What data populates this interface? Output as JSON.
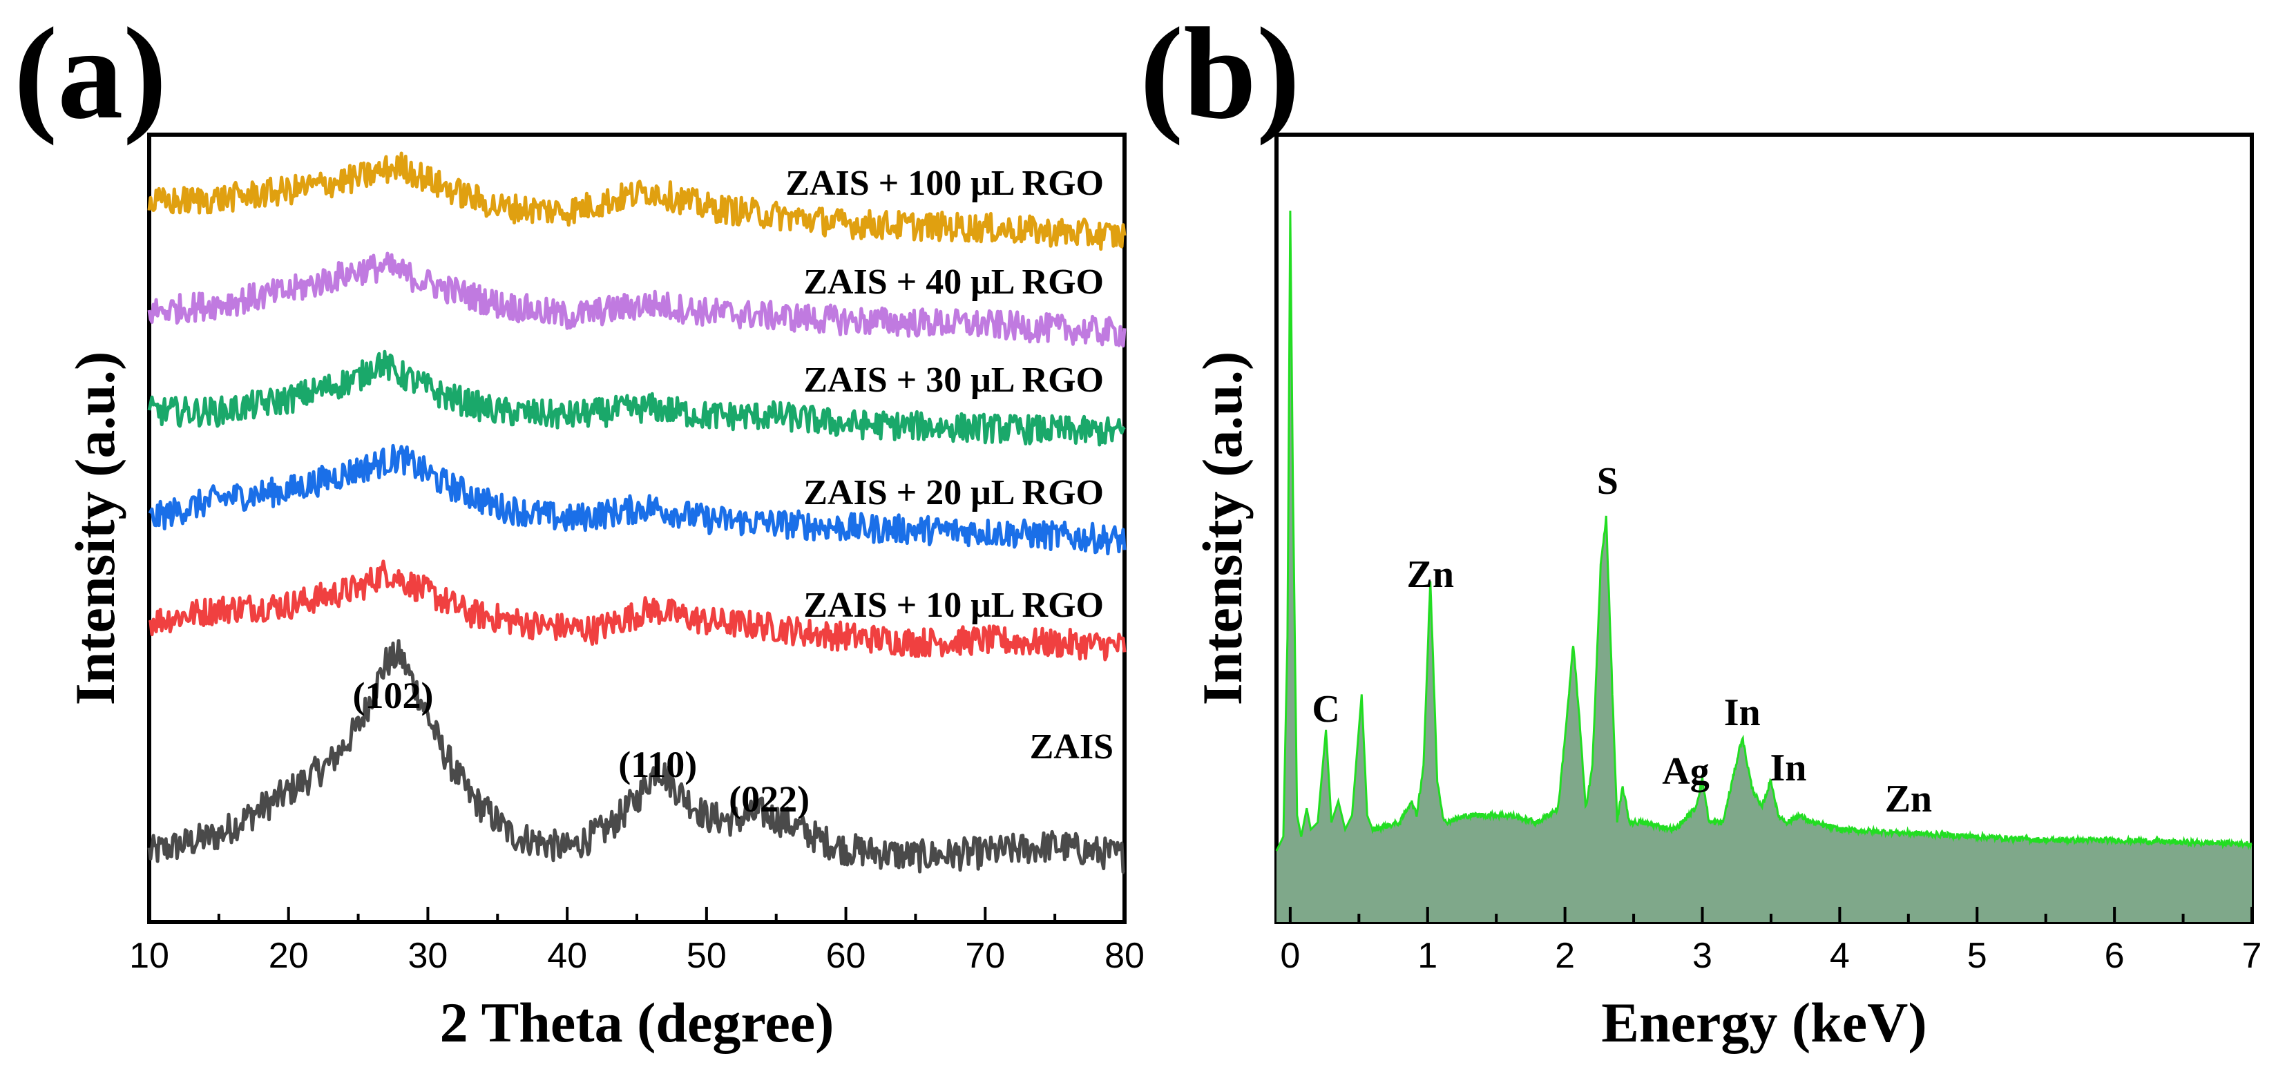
{
  "chart_data": [
    {
      "panel": "(a)",
      "type": "line",
      "title": "",
      "xlabel": "2 Theta (degree)",
      "ylabel": "Intensity (a.u.)",
      "xlim": [
        10,
        80
      ],
      "xticks": [
        "10",
        "20",
        "30",
        "40",
        "50",
        "60",
        "70",
        "80"
      ],
      "y_ticks_shown": false,
      "series": [
        {
          "name": "ZAIS",
          "color": "#4a4a4a",
          "offset": 0,
          "x": [
            10,
            15,
            20,
            23,
            25,
            27,
            28,
            29,
            31,
            33,
            36,
            40,
            43,
            45,
            46.5,
            48,
            50,
            52,
            54,
            56,
            58,
            60,
            65,
            70,
            75,
            80
          ],
          "y": [
            0.1,
            0.6,
            1.8,
            2.6,
            3.6,
            5.4,
            5.6,
            4.8,
            3.0,
            1.7,
            0.6,
            0.2,
            0.8,
            1.6,
            2.5,
            1.8,
            1.1,
            1.0,
            1.2,
            0.9,
            0.5,
            0.2,
            0,
            0.1,
            0.3,
            0
          ]
        },
        {
          "name": "ZAIS + 10 μL RGO",
          "color": "#f04040",
          "offset": 1,
          "x": [
            10,
            15,
            20,
            25,
            27,
            30,
            33,
            38,
            42,
            46,
            50,
            54,
            58,
            65,
            70,
            80
          ],
          "y": [
            0.5,
            0.8,
            0.9,
            1.3,
            1.7,
            1.2,
            0.7,
            0.4,
            0.3,
            0.8,
            0.5,
            0.4,
            0.2,
            0,
            0.05,
            -0.1
          ]
        },
        {
          "name": "ZAIS + 20 μL RGO",
          "color": "#1a6fe8",
          "offset": 2,
          "x": [
            10,
            15,
            20,
            25,
            28,
            31,
            35,
            40,
            46,
            50,
            55,
            60,
            70,
            80
          ],
          "y": [
            0.3,
            0.8,
            1.0,
            1.5,
            1.8,
            1.2,
            0.6,
            0.3,
            0.6,
            0.3,
            0.2,
            0.1,
            0,
            -0.2
          ]
        },
        {
          "name": "ZAIS + 30 μL RGO",
          "color": "#1aa86a",
          "offset": 3,
          "x": [
            10,
            15,
            20,
            25,
            26.5,
            28,
            31,
            35,
            40,
            46,
            50,
            55,
            60,
            70,
            80
          ],
          "y": [
            0.4,
            0.4,
            0.7,
            1.2,
            1.6,
            1.3,
            0.8,
            0.4,
            0.3,
            0.5,
            0.3,
            0.3,
            0.1,
            0,
            -0.1
          ]
        },
        {
          "name": "ZAIS + 40 μL RGO",
          "color": "#c07ae0",
          "offset": 4,
          "x": [
            10,
            15,
            20,
            25,
            27,
            30,
            35,
            40,
            46,
            50,
            55,
            60,
            70,
            80
          ],
          "y": [
            0.3,
            0.5,
            0.8,
            1.3,
            1.4,
            1.0,
            0.5,
            0.2,
            0.5,
            0.3,
            0.2,
            0.1,
            0,
            -0.2
          ]
        },
        {
          "name": "ZAIS + 100 μL RGO",
          "color": "#e0a010",
          "offset": 5,
          "x": [
            10,
            15,
            20,
            25,
            28,
            31,
            35,
            40,
            46,
            50,
            55,
            60,
            70,
            80
          ],
          "y": [
            0.6,
            0.7,
            0.9,
            1.2,
            1.5,
            1.0,
            0.5,
            0.4,
            0.9,
            0.5,
            0.3,
            0.1,
            0,
            -0.2
          ]
        }
      ],
      "annotations": [
        {
          "text": "(102)",
          "x": 27.5
        },
        {
          "text": "(110)",
          "x": 46.5
        },
        {
          "text": "(022)",
          "x": 54.5
        }
      ]
    },
    {
      "panel": "(b)",
      "type": "area",
      "title": "",
      "xlabel": "Energy (keV)",
      "ylabel": "Intensity (a.u.)",
      "xlim": [
        -0.1,
        7
      ],
      "ylim": [
        0,
        100
      ],
      "xticks": [
        "0",
        "1",
        "2",
        "3",
        "4",
        "5",
        "6",
        "7"
      ],
      "y_ticks_shown": false,
      "line_color": "#22dd22",
      "fill_color": "#7fa88a",
      "spectrum": {
        "x": [
          -0.1,
          -0.05,
          -0.02,
          0.0,
          0.02,
          0.05,
          0.08,
          0.12,
          0.15,
          0.2,
          0.26,
          0.3,
          0.35,
          0.4,
          0.45,
          0.52,
          0.56,
          0.6,
          0.8,
          0.88,
          0.92,
          0.97,
          1.02,
          1.07,
          1.12,
          1.3,
          1.6,
          1.8,
          1.95,
          2.02,
          2.06,
          2.1,
          2.15,
          2.2,
          2.26,
          2.3,
          2.34,
          2.38,
          2.42,
          2.47,
          2.55,
          2.8,
          2.95,
          3.0,
          3.05,
          3.15,
          3.22,
          3.29,
          3.36,
          3.43,
          3.5,
          3.55,
          3.62,
          3.7,
          3.8,
          4.0,
          4.5,
          5.0,
          5.5,
          6.0,
          6.5,
          7.0
        ],
        "y": [
          10,
          12,
          40,
          100,
          60,
          15,
          12,
          16,
          13,
          14,
          27,
          14,
          17,
          13,
          15,
          32,
          15,
          13,
          14,
          17,
          15,
          22,
          48,
          20,
          14,
          15,
          15,
          14,
          16,
          30,
          39,
          30,
          16,
          22,
          50,
          57,
          35,
          14,
          19,
          14,
          14,
          13,
          16,
          20,
          14,
          14,
          20,
          26,
          19,
          16,
          20,
          15,
          14,
          15,
          14,
          13,
          12.5,
          12,
          11.5,
          11.5,
          11.2,
          11
        ]
      },
      "annotations": [
        {
          "text": "C",
          "x": 0.26
        },
        {
          "text": "Zn",
          "x": 1.02
        },
        {
          "text": "S",
          "x": 2.31
        },
        {
          "text": "Ag",
          "x": 2.98
        },
        {
          "text": "In",
          "x": 3.29
        },
        {
          "text": "In",
          "x": 3.5
        },
        {
          "text": "Zn",
          "x": 4.5
        }
      ]
    }
  ]
}
